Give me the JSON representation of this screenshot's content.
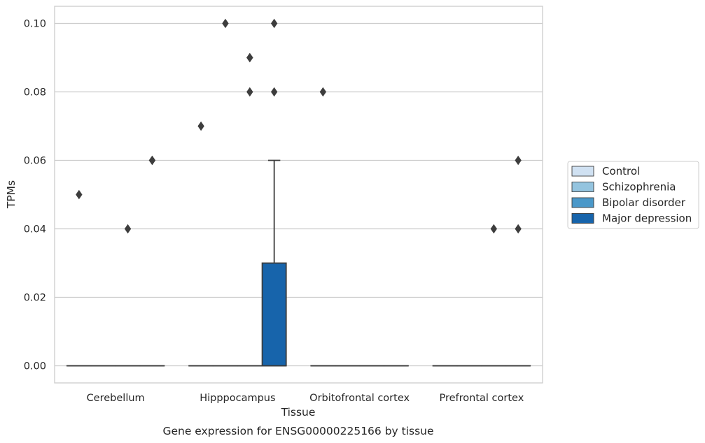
{
  "chart_data": {
    "type": "box",
    "title": "Gene expression for ENSG00000225166 by tissue",
    "xlabel": "Tissue",
    "ylabel": "TPMs",
    "categories": [
      "Cerebellum",
      "Hipppocampus",
      "Orbitofrontal cortex",
      "Prefrontal cortex"
    ],
    "ylim": [
      -0.005,
      0.105
    ],
    "yticks": [
      "0.00",
      "0.02",
      "0.04",
      "0.06",
      "0.08",
      "0.10"
    ],
    "grid": true,
    "legend_position": "right",
    "series": [
      {
        "name": "Control",
        "color": "#d0e1f2",
        "boxes": [
          {
            "category": "Cerebellum",
            "q1": 0,
            "median": 0,
            "q3": 0,
            "whisker_low": 0,
            "whisker_high": 0,
            "outliers": [
              0.05
            ]
          },
          {
            "category": "Hipppocampus",
            "q1": 0,
            "median": 0,
            "q3": 0,
            "whisker_low": 0,
            "whisker_high": 0,
            "outliers": [
              0.07
            ]
          },
          {
            "category": "Orbitofrontal cortex",
            "q1": 0,
            "median": 0,
            "q3": 0,
            "whisker_low": 0,
            "whisker_high": 0,
            "outliers": [
              0.08
            ]
          },
          {
            "category": "Prefrontal cortex",
            "q1": 0,
            "median": 0,
            "q3": 0,
            "whisker_low": 0,
            "whisker_high": 0,
            "outliers": []
          }
        ]
      },
      {
        "name": "Schizophrenia",
        "color": "#94c4df",
        "boxes": [
          {
            "category": "Cerebellum",
            "q1": 0,
            "median": 0,
            "q3": 0,
            "whisker_low": 0,
            "whisker_high": 0,
            "outliers": []
          },
          {
            "category": "Hipppocampus",
            "q1": 0,
            "median": 0,
            "q3": 0,
            "whisker_low": 0,
            "whisker_high": 0,
            "outliers": [
              0.1
            ]
          },
          {
            "category": "Orbitofrontal cortex",
            "q1": 0,
            "median": 0,
            "q3": 0,
            "whisker_low": 0,
            "whisker_high": 0,
            "outliers": []
          },
          {
            "category": "Prefrontal cortex",
            "q1": 0,
            "median": 0,
            "q3": 0,
            "whisker_low": 0,
            "whisker_high": 0,
            "outliers": []
          }
        ]
      },
      {
        "name": "Bipolar disorder",
        "color": "#4a98c9",
        "boxes": [
          {
            "category": "Cerebellum",
            "q1": 0,
            "median": 0,
            "q3": 0,
            "whisker_low": 0,
            "whisker_high": 0,
            "outliers": [
              0.04
            ]
          },
          {
            "category": "Hipppocampus",
            "q1": 0,
            "median": 0,
            "q3": 0,
            "whisker_low": 0,
            "whisker_high": 0,
            "outliers": [
              0.08,
              0.09,
              0.09
            ]
          },
          {
            "category": "Orbitofrontal cortex",
            "q1": 0,
            "median": 0,
            "q3": 0,
            "whisker_low": 0,
            "whisker_high": 0,
            "outliers": []
          },
          {
            "category": "Prefrontal cortex",
            "q1": 0,
            "median": 0,
            "q3": 0,
            "whisker_low": 0,
            "whisker_high": 0,
            "outliers": [
              0.04
            ]
          }
        ]
      },
      {
        "name": "Major depression",
        "color": "#1764ab",
        "boxes": [
          {
            "category": "Cerebellum",
            "q1": 0,
            "median": 0,
            "q3": 0,
            "whisker_low": 0,
            "whisker_high": 0,
            "outliers": [
              0.06,
              0.06
            ]
          },
          {
            "category": "Hipppocampus",
            "q1": 0,
            "median": 0,
            "q3": 0.03,
            "whisker_low": 0,
            "whisker_high": 0.06,
            "outliers": [
              0.08,
              0.1
            ]
          },
          {
            "category": "Orbitofrontal cortex",
            "q1": 0,
            "median": 0,
            "q3": 0,
            "whisker_low": 0,
            "whisker_high": 0,
            "outliers": []
          },
          {
            "category": "Prefrontal cortex",
            "q1": 0,
            "median": 0,
            "q3": 0,
            "whisker_low": 0,
            "whisker_high": 0,
            "outliers": [
              0.04,
              0.06
            ]
          }
        ]
      }
    ]
  }
}
